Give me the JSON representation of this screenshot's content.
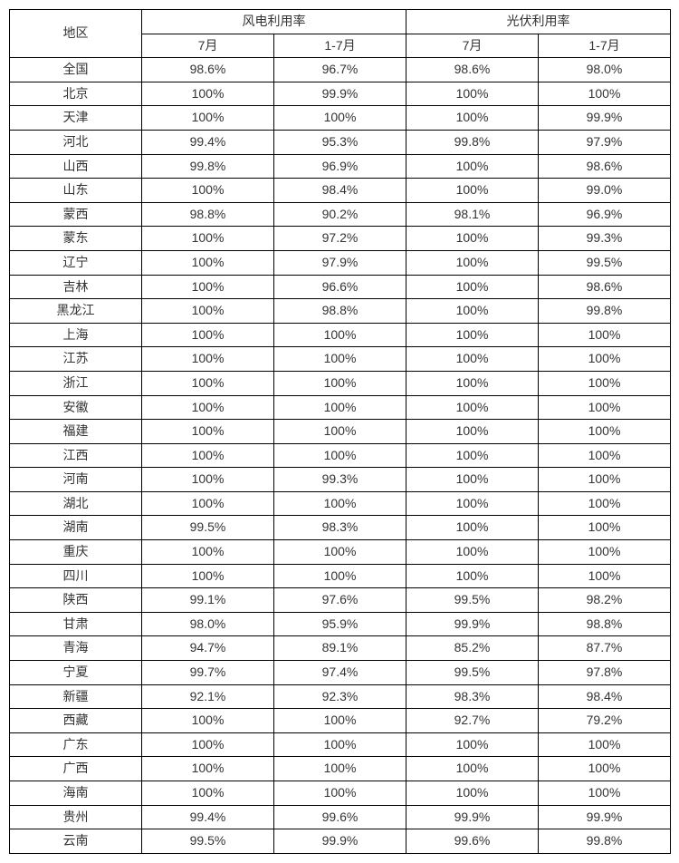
{
  "table": {
    "header": {
      "region_label": "地区",
      "wind_group": "风电利用率",
      "solar_group": "光伏利用率",
      "col_jul": "7月",
      "col_jan_jul": "1-7月"
    },
    "rows": [
      {
        "region": "全国",
        "w7": "98.6%",
        "w17": "96.7%",
        "s7": "98.6%",
        "s17": "98.0%"
      },
      {
        "region": "北京",
        "w7": "100%",
        "w17": "99.9%",
        "s7": "100%",
        "s17": "100%"
      },
      {
        "region": "天津",
        "w7": "100%",
        "w17": "100%",
        "s7": "100%",
        "s17": "99.9%"
      },
      {
        "region": "河北",
        "w7": "99.4%",
        "w17": "95.3%",
        "s7": "99.8%",
        "s17": "97.9%"
      },
      {
        "region": "山西",
        "w7": "99.8%",
        "w17": "96.9%",
        "s7": "100%",
        "s17": "98.6%"
      },
      {
        "region": "山东",
        "w7": "100%",
        "w17": "98.4%",
        "s7": "100%",
        "s17": "99.0%"
      },
      {
        "region": "蒙西",
        "w7": "98.8%",
        "w17": "90.2%",
        "s7": "98.1%",
        "s17": "96.9%"
      },
      {
        "region": "蒙东",
        "w7": "100%",
        "w17": "97.2%",
        "s7": "100%",
        "s17": "99.3%"
      },
      {
        "region": "辽宁",
        "w7": "100%",
        "w17": "97.9%",
        "s7": "100%",
        "s17": "99.5%"
      },
      {
        "region": "吉林",
        "w7": "100%",
        "w17": "96.6%",
        "s7": "100%",
        "s17": "98.6%"
      },
      {
        "region": "黑龙江",
        "w7": "100%",
        "w17": "98.8%",
        "s7": "100%",
        "s17": "99.8%"
      },
      {
        "region": "上海",
        "w7": "100%",
        "w17": "100%",
        "s7": "100%",
        "s17": "100%"
      },
      {
        "region": "江苏",
        "w7": "100%",
        "w17": "100%",
        "s7": "100%",
        "s17": "100%"
      },
      {
        "region": "浙江",
        "w7": "100%",
        "w17": "100%",
        "s7": "100%",
        "s17": "100%"
      },
      {
        "region": "安徽",
        "w7": "100%",
        "w17": "100%",
        "s7": "100%",
        "s17": "100%"
      },
      {
        "region": "福建",
        "w7": "100%",
        "w17": "100%",
        "s7": "100%",
        "s17": "100%"
      },
      {
        "region": "江西",
        "w7": "100%",
        "w17": "100%",
        "s7": "100%",
        "s17": "100%"
      },
      {
        "region": "河南",
        "w7": "100%",
        "w17": "99.3%",
        "s7": "100%",
        "s17": "100%"
      },
      {
        "region": "湖北",
        "w7": "100%",
        "w17": "100%",
        "s7": "100%",
        "s17": "100%"
      },
      {
        "region": "湖南",
        "w7": "99.5%",
        "w17": "98.3%",
        "s7": "100%",
        "s17": "100%"
      },
      {
        "region": "重庆",
        "w7": "100%",
        "w17": "100%",
        "s7": "100%",
        "s17": "100%"
      },
      {
        "region": "四川",
        "w7": "100%",
        "w17": "100%",
        "s7": "100%",
        "s17": "100%"
      },
      {
        "region": "陕西",
        "w7": "99.1%",
        "w17": "97.6%",
        "s7": "99.5%",
        "s17": "98.2%"
      },
      {
        "region": "甘肃",
        "w7": "98.0%",
        "w17": "95.9%",
        "s7": "99.9%",
        "s17": "98.8%"
      },
      {
        "region": "青海",
        "w7": "94.7%",
        "w17": "89.1%",
        "s7": "85.2%",
        "s17": "87.7%"
      },
      {
        "region": "宁夏",
        "w7": "99.7%",
        "w17": "97.4%",
        "s7": "99.5%",
        "s17": "97.8%"
      },
      {
        "region": "新疆",
        "w7": "92.1%",
        "w17": "92.3%",
        "s7": "98.3%",
        "s17": "98.4%"
      },
      {
        "region": "西藏",
        "w7": "100%",
        "w17": "100%",
        "s7": "92.7%",
        "s17": "79.2%"
      },
      {
        "region": "广东",
        "w7": "100%",
        "w17": "100%",
        "s7": "100%",
        "s17": "100%"
      },
      {
        "region": "广西",
        "w7": "100%",
        "w17": "100%",
        "s7": "100%",
        "s17": "100%"
      },
      {
        "region": "海南",
        "w7": "100%",
        "w17": "100%",
        "s7": "100%",
        "s17": "100%"
      },
      {
        "region": "贵州",
        "w7": "99.4%",
        "w17": "99.6%",
        "s7": "99.9%",
        "s17": "99.9%"
      },
      {
        "region": "云南",
        "w7": "99.5%",
        "w17": "99.9%",
        "s7": "99.6%",
        "s17": "99.8%"
      }
    ],
    "colors": {
      "border": "#000000",
      "text": "#333333",
      "background": "#ffffff"
    },
    "fontsize": 14
  }
}
